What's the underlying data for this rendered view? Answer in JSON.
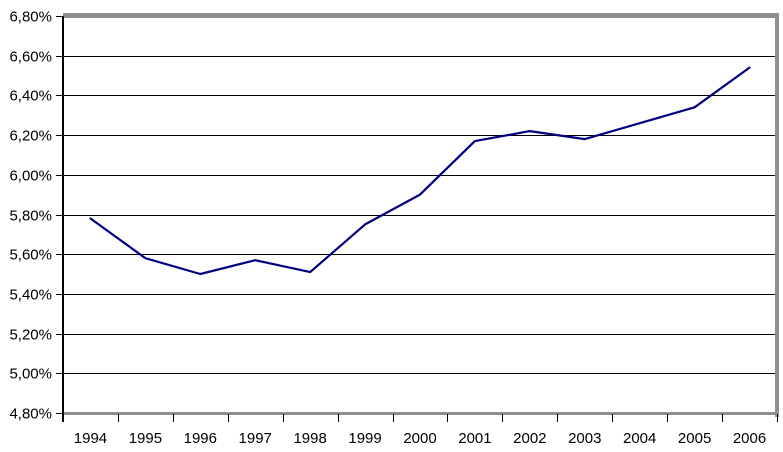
{
  "chart_data": {
    "type": "line",
    "title": "",
    "categories": [
      "1994",
      "1995",
      "1996",
      "1997",
      "1998",
      "1999",
      "2000",
      "2001",
      "2002",
      "2003",
      "2004",
      "2005",
      "2006"
    ],
    "values": [
      5.78,
      5.58,
      5.5,
      5.57,
      5.51,
      5.75,
      5.9,
      6.17,
      6.22,
      6.18,
      6.26,
      6.34,
      6.54
    ],
    "xlabel": "",
    "ylabel": "",
    "ylim": [
      4.8,
      6.8
    ],
    "ytick_step": 0.2,
    "y_tick_labels": [
      "6,80%",
      "6,60%",
      "6,40%",
      "6,20%",
      "6,00%",
      "5,80%",
      "5,60%",
      "5,40%",
      "5,20%",
      "5,00%",
      "4,80%"
    ],
    "x_tick_labels": [
      "1994",
      "1995",
      "1996",
      "1997",
      "1998",
      "1999",
      "2000",
      "2001",
      "2002",
      "2003",
      "2004",
      "2005",
      "2006"
    ],
    "grid": true,
    "legend": false,
    "colors": {
      "line": "#000080",
      "gridline": "#000000",
      "axis": "#000000",
      "plot_border": "#8f8f8f",
      "text": "#000000",
      "background": "#ffffff"
    }
  }
}
